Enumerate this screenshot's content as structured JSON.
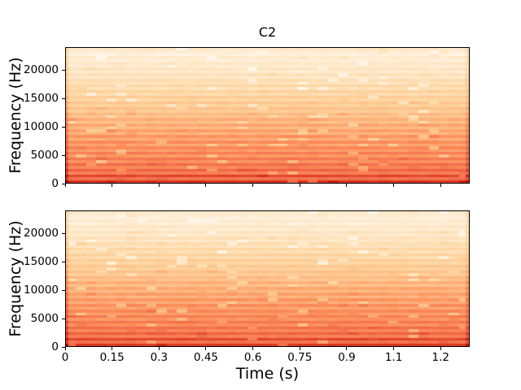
{
  "figure": {
    "background": "#ffffff",
    "text_color": "#000000",
    "spine_color": "#000000"
  },
  "chart_data": {
    "type": "heatmap",
    "title": "C2",
    "xlabel": "Time (s)",
    "ylabel": "Frequency (Hz)",
    "legend": "none",
    "grid": false,
    "colormap": "OrRd",
    "colormap_stops": [
      [
        0.0,
        "#fff7ec"
      ],
      [
        0.125,
        "#fee8c8"
      ],
      [
        0.25,
        "#fdd49e"
      ],
      [
        0.375,
        "#fdbb84"
      ],
      [
        0.5,
        "#fc8d59"
      ],
      [
        0.625,
        "#ef6548"
      ],
      [
        0.75,
        "#d7301f"
      ],
      [
        0.875,
        "#b30000"
      ],
      [
        1.0,
        "#7f0000"
      ]
    ],
    "xlim": [
      0,
      1.293
    ],
    "ylim": [
      0,
      24000
    ],
    "x_ticks": {
      "positions": [
        0,
        0.15,
        0.3,
        0.45,
        0.6,
        0.75,
        0.9,
        1.05,
        1.2
      ],
      "labels": [
        "0",
        "0.15",
        "0.3",
        "0.45",
        "0.6",
        "0.75",
        "0.9",
        "1.1",
        "1.2"
      ]
    },
    "y_ticks": {
      "positions": [
        0,
        5000,
        10000,
        15000,
        20000
      ],
      "labels": [
        "0",
        "5000",
        "10000",
        "15000",
        "20000"
      ]
    },
    "subplots": [
      {
        "name": "spectrogram-channel-1",
        "seed": 20
      },
      {
        "name": "spectrogram-channel-2",
        "seed": 77
      }
    ],
    "n_time_bins": 40,
    "n_freq_bins": 48,
    "freq_bin_levels": [
      0.74,
      0.58,
      0.7,
      0.54,
      0.63,
      0.52,
      0.6,
      0.49,
      0.57,
      0.47,
      0.55,
      0.45,
      0.52,
      0.43,
      0.5,
      0.41,
      0.48,
      0.39,
      0.45,
      0.37,
      0.43,
      0.34,
      0.41,
      0.32,
      0.38,
      0.29,
      0.35,
      0.26,
      0.32,
      0.23,
      0.29,
      0.2,
      0.26,
      0.17,
      0.23,
      0.15,
      0.2,
      0.12,
      0.17,
      0.1,
      0.15,
      0.08,
      0.13,
      0.06,
      0.11,
      0.05,
      0.09,
      0.12
    ],
    "edge_columns": {
      "first_boost": 0.13,
      "last_boost": 0.09
    },
    "noise": {
      "jitter": 0.035,
      "light_dash_prob": 0.05,
      "light_dash_amount": 0.11,
      "dark_dash_prob": 0.04,
      "dark_dash_amount": 0.045
    }
  }
}
